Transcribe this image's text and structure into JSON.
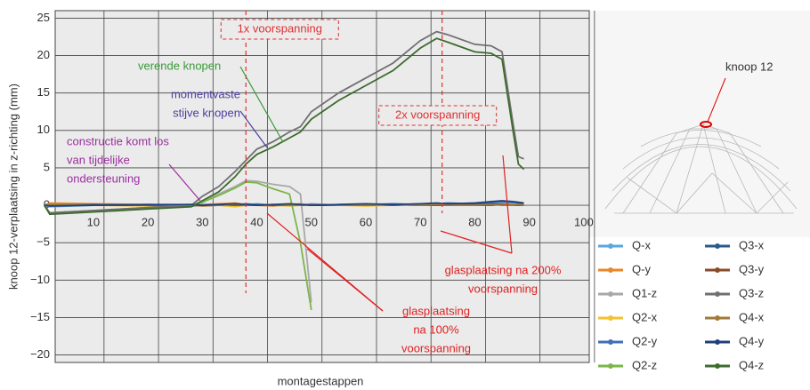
{
  "chart_data": {
    "type": "line",
    "xlabel": "montagestappen",
    "ylabel": "knoop 12-verplaatsing in z-richting (mm)",
    "inset_label": "knoop 12",
    "x": [
      1,
      2,
      10,
      20,
      28,
      30,
      33,
      36,
      38,
      40,
      43,
      46,
      48,
      50,
      55,
      60,
      65,
      70,
      73,
      75,
      80,
      83,
      85,
      87,
      88,
      89
    ],
    "xlim": [
      3,
      101
    ],
    "xticks": [
      10,
      20,
      30,
      40,
      50,
      60,
      70,
      80,
      90,
      100
    ],
    "ylim": [
      -21,
      26
    ],
    "yticks": [
      25,
      20,
      15,
      10,
      5,
      0,
      {
        "value": -5,
        "label": "−5"
      },
      {
        "value": -10,
        "label": "−10"
      },
      {
        "value": -15,
        "label": "−15"
      },
      {
        "value": -20,
        "label": "−20"
      }
    ],
    "grid": true,
    "series": [
      {
        "name": "Q-x",
        "color": "#5aa6e0",
        "values": [
          0,
          -0.2,
          0,
          0.1,
          0,
          0.2,
          0,
          0.1,
          0,
          0.2,
          0,
          0.1,
          0,
          0.2,
          0,
          0.1,
          0,
          0.2,
          0,
          0.1,
          0.3,
          0.2,
          0.4,
          0.3,
          0.2,
          0.1
        ]
      },
      {
        "name": "Q-y",
        "color": "#e8862a",
        "values": [
          0,
          0.3,
          0.2,
          0.1,
          0,
          0.1,
          0.2,
          0.3,
          0.1,
          0,
          -0.1,
          0.1,
          0.2,
          0,
          0.1,
          0,
          0.1,
          0,
          0.2,
          0.1,
          0,
          0.1,
          0.2,
          0.1,
          0,
          0
        ]
      },
      {
        "name": "Q1-z",
        "color": "#a8a8a8",
        "values": [
          0,
          -1,
          -0.7,
          -0.3,
          0,
          0.5,
          1.5,
          2.5,
          3.3,
          3.2,
          2.8,
          2.5,
          1.5,
          -13,
          null,
          null,
          null,
          null,
          null,
          null,
          null,
          null,
          null,
          null,
          null,
          null
        ]
      },
      {
        "name": "Q2-x",
        "color": "#f2c230",
        "values": [
          0,
          0.1,
          0,
          -0.1,
          0,
          0.1,
          0,
          -0.2,
          0,
          0.1,
          0,
          -0.1,
          0,
          0.1,
          0,
          -0.1,
          0,
          0.1,
          0,
          0,
          0.1,
          0,
          0.1,
          0,
          0,
          0
        ]
      },
      {
        "name": "Q2-y",
        "color": "#3f6fb5",
        "values": [
          0,
          -0.1,
          0.1,
          0,
          0.1,
          0,
          0.1,
          0,
          0.2,
          0.1,
          0,
          0.1,
          0,
          0.1,
          0,
          0.1,
          0.2,
          0.1,
          0.2,
          0.3,
          0.2,
          0.4,
          0.5,
          0.4,
          0.3,
          0.2
        ]
      },
      {
        "name": "Q2-z",
        "color": "#7ab648",
        "values": [
          0,
          -1.1,
          -0.8,
          -0.4,
          -0.1,
          0.4,
          1.3,
          2.3,
          3.1,
          3,
          2.2,
          1.5,
          -5,
          -14,
          null,
          null,
          null,
          null,
          null,
          null,
          null,
          null,
          null,
          null,
          null,
          null
        ]
      },
      {
        "name": "Q3-x",
        "color": "#2a5a8a",
        "values": [
          0,
          0,
          0.1,
          0,
          -0.1,
          0,
          0.1,
          0,
          0,
          0.1,
          0,
          0,
          0.1,
          0,
          0,
          0.1,
          0,
          0.1,
          0,
          0,
          0.1,
          0.2,
          0.1,
          0,
          0,
          0
        ]
      },
      {
        "name": "Q3-y",
        "color": "#8a4a2a",
        "values": [
          0,
          0.1,
          0,
          0,
          0.1,
          0,
          0,
          0.1,
          0,
          0,
          0.1,
          0,
          0,
          0.1,
          0,
          0,
          0.1,
          0,
          0,
          0.1,
          0,
          0,
          0.1,
          0,
          0,
          0
        ]
      },
      {
        "name": "Q3-z",
        "color": "#707070",
        "values": [
          0,
          -1,
          -0.7,
          -0.3,
          0,
          1.2,
          2.5,
          4.5,
          6,
          7.5,
          8.5,
          9.8,
          10.5,
          12.5,
          15,
          17,
          19,
          22,
          23.2,
          22.8,
          21.5,
          21.3,
          20.5,
          11,
          6.5,
          6.2
        ]
      },
      {
        "name": "Q4-x",
        "color": "#a07a3a",
        "values": [
          0,
          0.1,
          0,
          0.1,
          0,
          -0.1,
          0,
          0.1,
          0,
          0,
          0.1,
          0,
          0,
          0.1,
          0,
          0,
          0.1,
          0,
          0.1,
          0,
          0,
          0.1,
          0,
          0,
          0.1,
          0
        ]
      },
      {
        "name": "Q4-y",
        "color": "#1f3f7a",
        "values": [
          0,
          -0.1,
          0,
          0.1,
          0.1,
          0,
          0.1,
          0.2,
          0.1,
          0,
          0.1,
          0.2,
          0.1,
          0,
          0.1,
          0.2,
          0.1,
          0.2,
          0.3,
          0.2,
          0.3,
          0.5,
          0.6,
          0.5,
          0.4,
          0.3
        ]
      },
      {
        "name": "Q4-z",
        "color": "#3d6b2d",
        "values": [
          0,
          -1.2,
          -0.9,
          -0.5,
          -0.2,
          0.6,
          1.8,
          3.8,
          5.5,
          6.8,
          7.8,
          9,
          9.8,
          11.5,
          14,
          16,
          18,
          21,
          22.3,
          21.8,
          20.5,
          20.3,
          19.5,
          10,
          5.5,
          4.8
        ]
      }
    ],
    "markers": [
      {
        "x": 38,
        "label": "1x voorspanning"
      },
      {
        "x": 74,
        "label": "2x voorspanning"
      }
    ],
    "annotations": [
      {
        "lines": [
          "verende knopen"
        ],
        "color": "#3a9a3a"
      },
      {
        "lines": [
          "momentvaste",
          "stijve knopen"
        ],
        "color": "#4a3fa0"
      },
      {
        "lines": [
          "constructie komt los",
          "van tijdelijke",
          "ondersteuning"
        ],
        "color": "#9b2fa0"
      },
      {
        "lines": [
          "glasplaatsing",
          "na 100%",
          "voorspanning"
        ],
        "color": "#e02020"
      },
      {
        "lines": [
          "glasplaatsing na 200%",
          "voorspanning"
        ],
        "color": "#e02020"
      }
    ]
  }
}
